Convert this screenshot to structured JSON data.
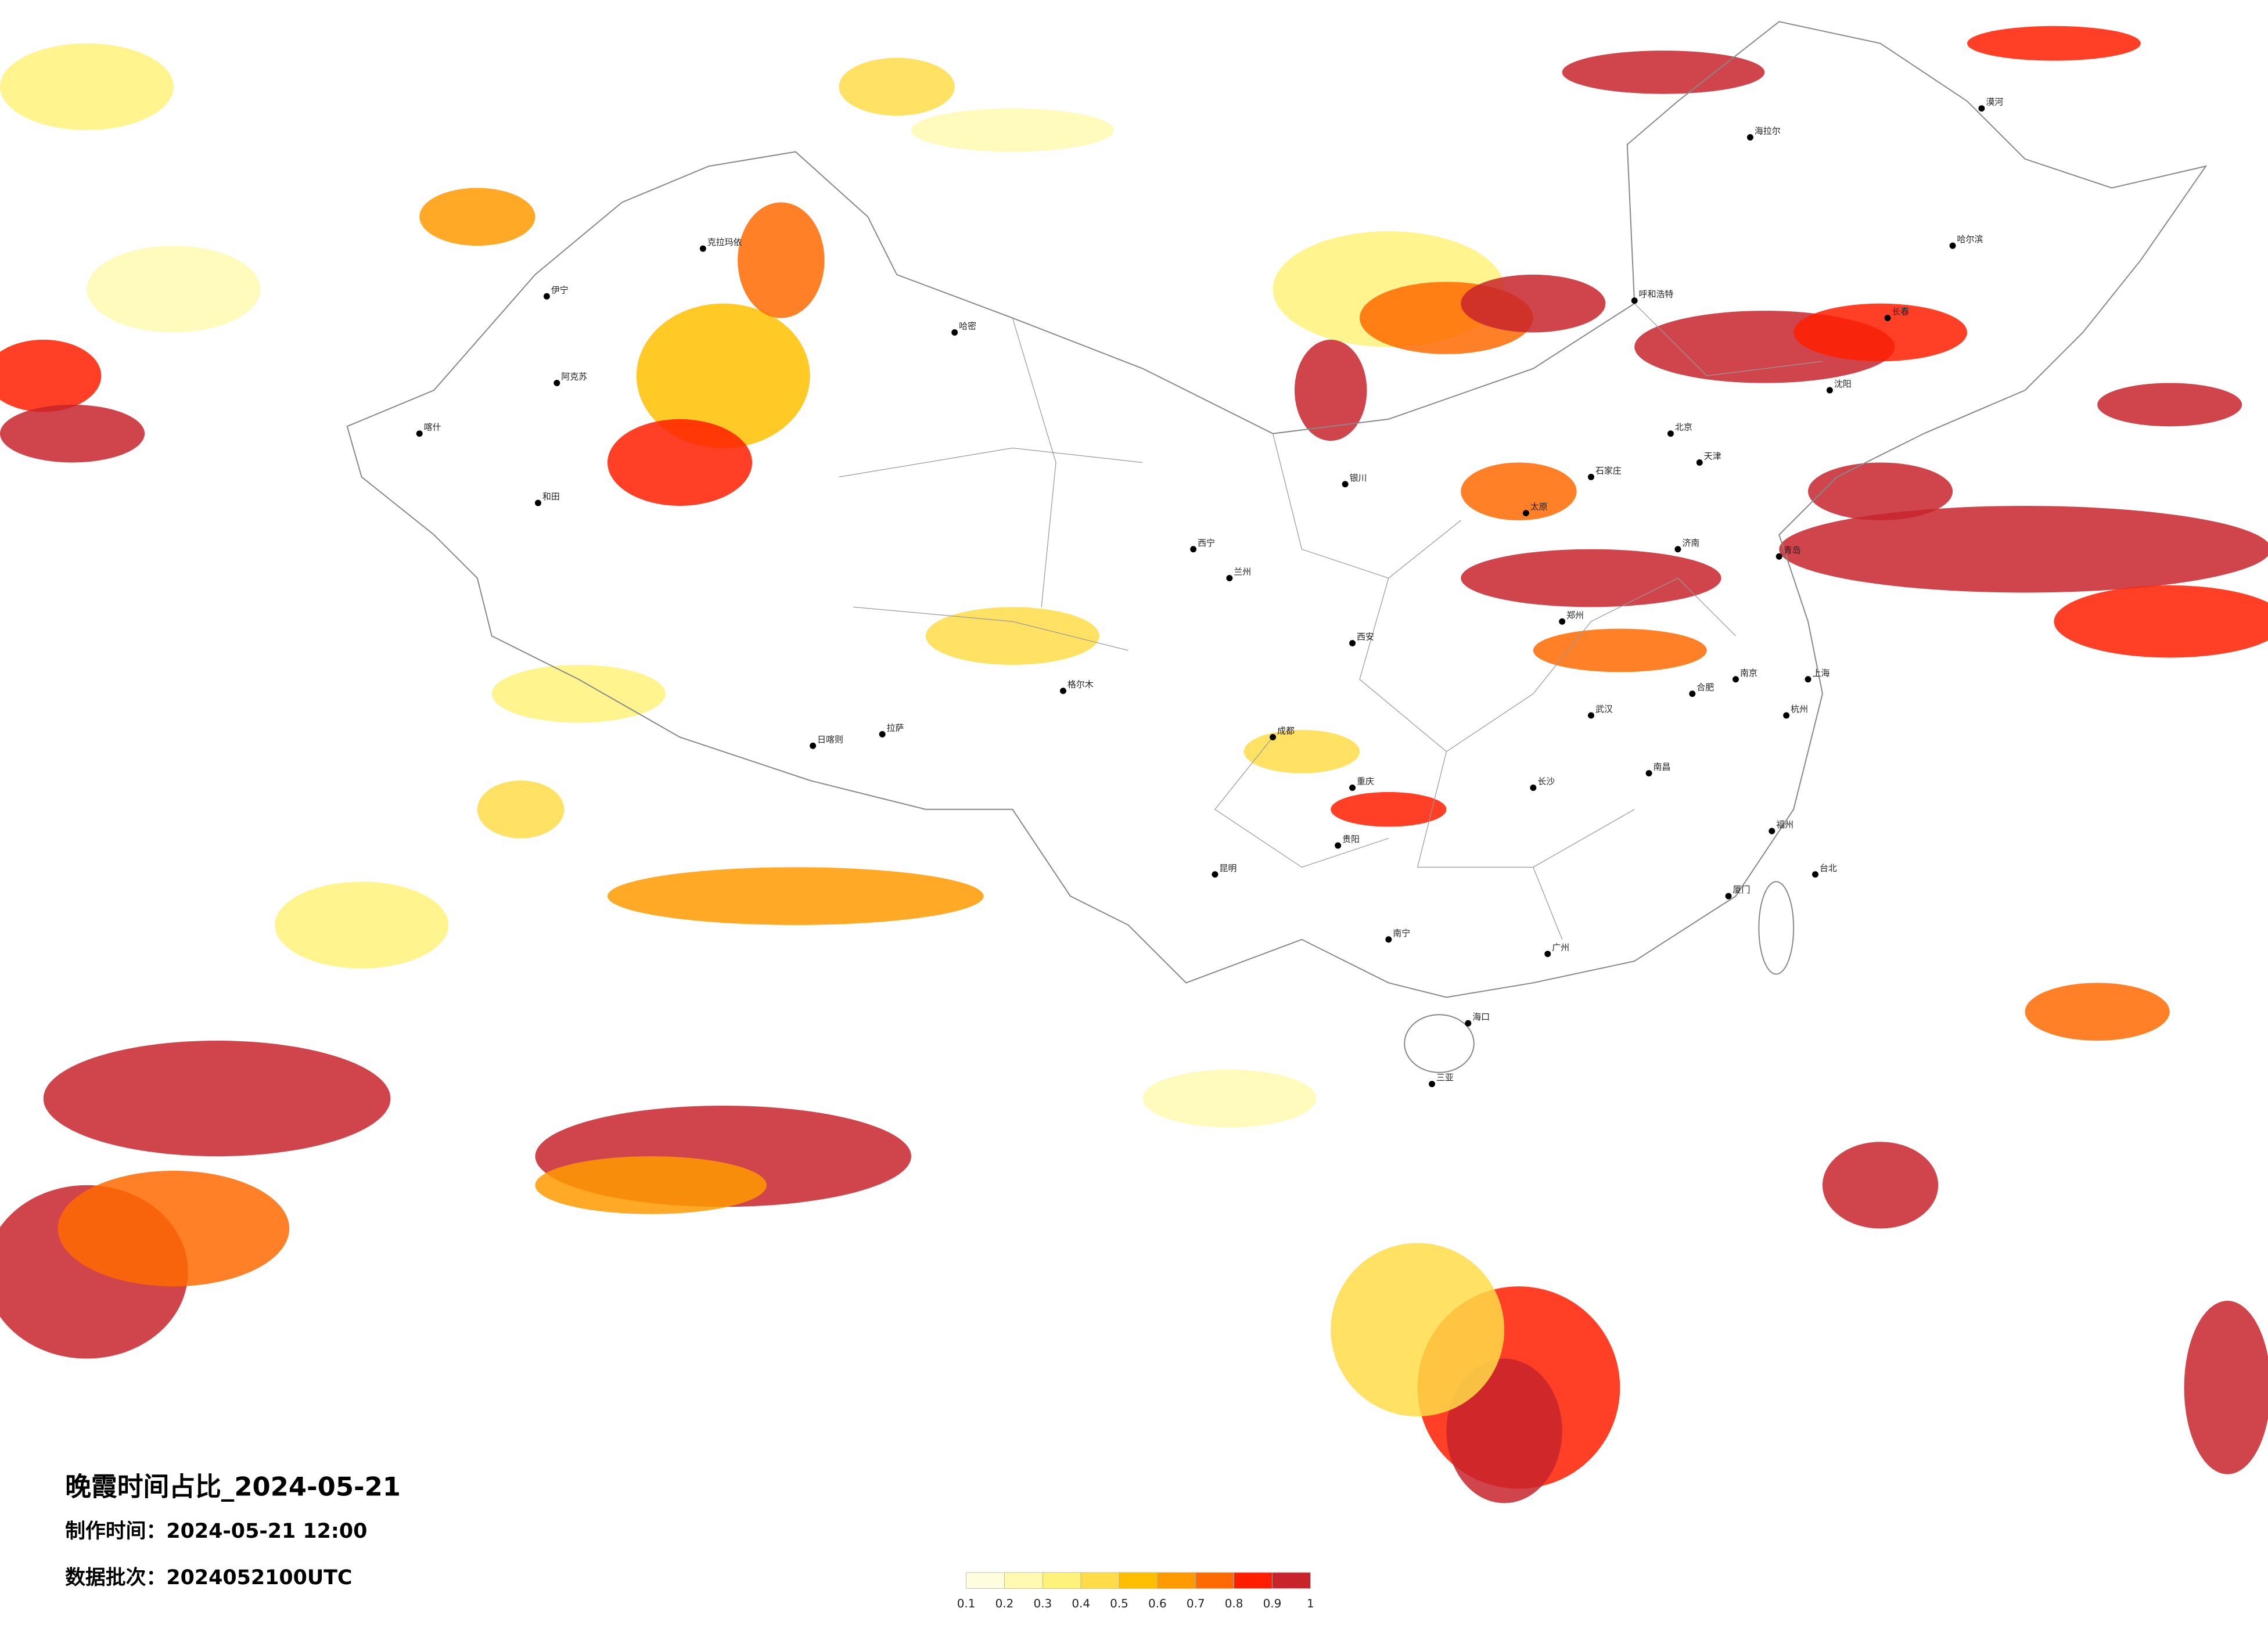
{
  "header": {
    "title": "晚霞时间占比_2024-05-21",
    "made_time": "制作时间：2024-05-21 12:00",
    "batch": "数据批次：2024052100UTC"
  },
  "colorbar": {
    "labels": [
      "0.1",
      "0.2",
      "0.3",
      "0.4",
      "0.5",
      "0.6",
      "0.7",
      "0.8",
      "0.9",
      "1"
    ],
    "colors": [
      "#fffde0",
      "#fffab0",
      "#fff27a",
      "#ffdc48",
      "#ffbf00",
      "#ff9a00",
      "#ff6a00",
      "#ff1e00",
      "#c8242c"
    ]
  },
  "cities": [
    "伊宁",
    "阿克苏",
    "喀什",
    "和田",
    "克拉玛依",
    "哈密",
    "拉萨",
    "日喀则",
    "格尔木",
    "西宁",
    "兰州",
    "成都",
    "重庆",
    "昆明",
    "贵阳",
    "南宁",
    "海口",
    "三亚",
    "广州",
    "长沙",
    "武汉",
    "郑州",
    "西安",
    "北京",
    "天津",
    "石家庄",
    "太原",
    "呼和浩特",
    "沈阳",
    "长春",
    "哈尔滨",
    "漠河",
    "海拉尔",
    "上海",
    "南京",
    "杭州",
    "福州",
    "厦门",
    "台北",
    "南昌",
    "济南",
    "青岛",
    "合肥",
    "银川"
  ]
}
